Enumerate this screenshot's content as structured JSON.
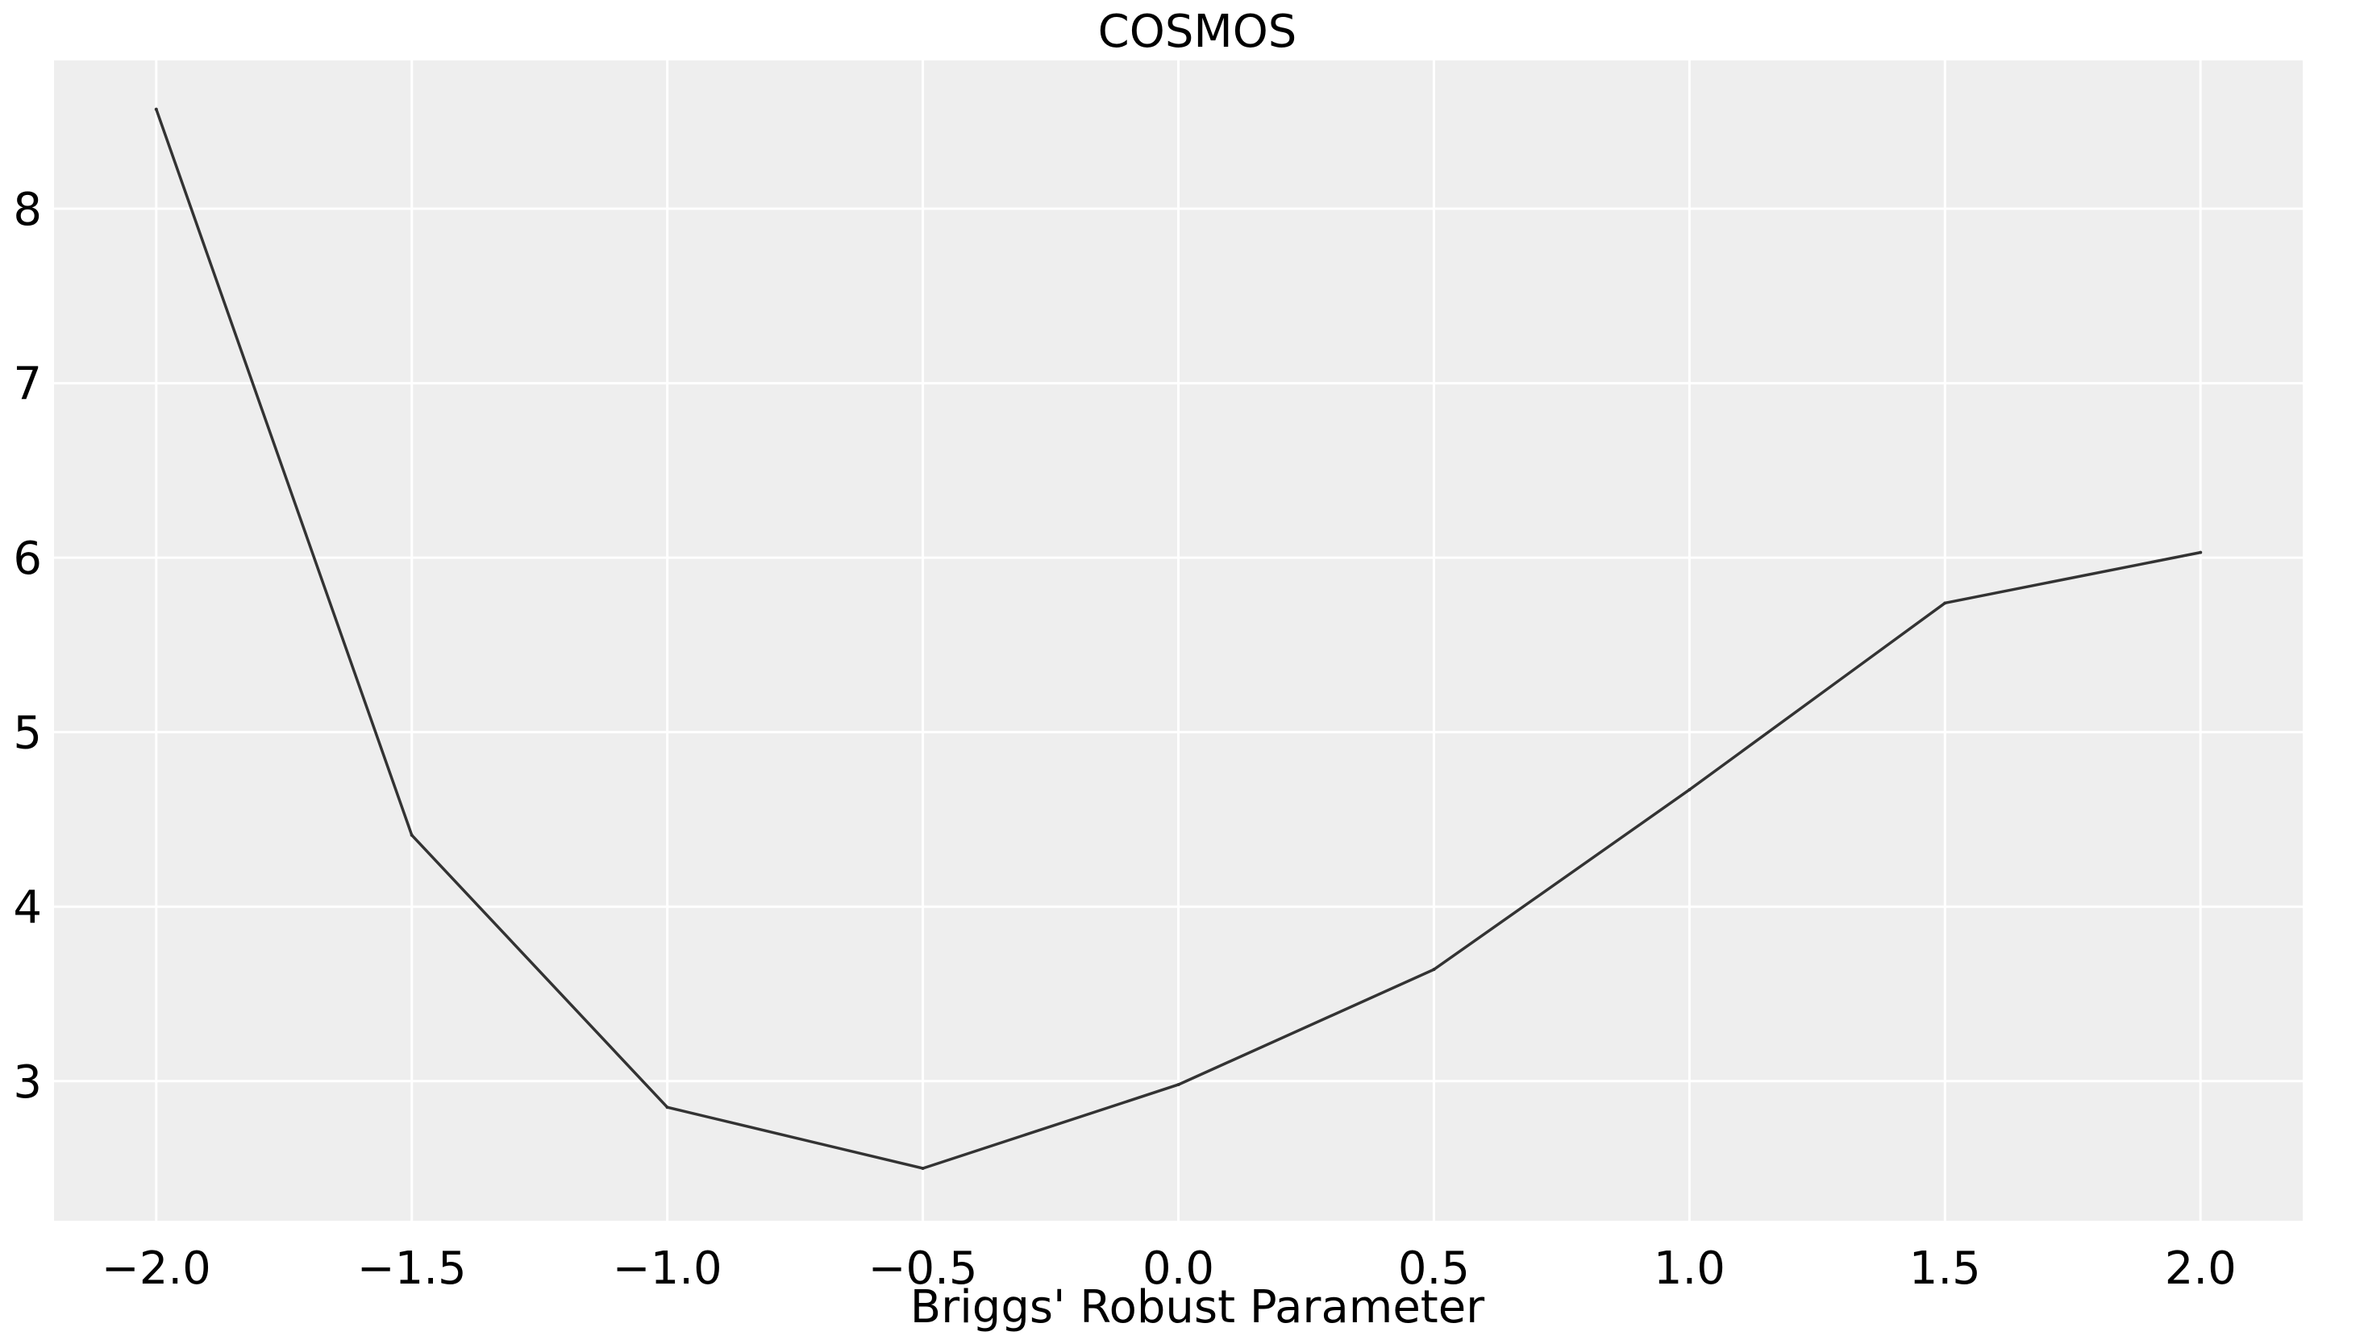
{
  "chart_data": {
    "type": "line",
    "title": "COSMOS",
    "xlabel": "Briggs' Robust Parameter",
    "ylabel": "",
    "xlim": [
      -2.2,
      2.2
    ],
    "ylim": [
      2.2,
      8.85
    ],
    "xticks": [
      -2.0,
      -1.5,
      -1.0,
      -0.5,
      0.0,
      0.5,
      1.0,
      1.5,
      2.0
    ],
    "xtick_labels": [
      "−2.0",
      "−1.5",
      "−1.0",
      "−0.5",
      "0.0",
      "0.5",
      "1.0",
      "1.5",
      "2.0"
    ],
    "yticks": [
      3,
      4,
      5,
      6,
      7,
      8
    ],
    "ytick_labels": [
      "3",
      "4",
      "5",
      "6",
      "7",
      "8"
    ],
    "grid": true,
    "legend": "none",
    "colors": {
      "plot_background": "#eeeeee",
      "grid": "#ffffff",
      "line": "#333333"
    },
    "series": [
      {
        "x": [
          -2.0,
          -1.5,
          -1.0,
          -0.5,
          0.0,
          0.5,
          1.0,
          1.5,
          2.0
        ],
        "values": [
          8.57,
          4.41,
          2.85,
          2.5,
          2.98,
          3.64,
          4.67,
          5.74,
          6.03
        ]
      }
    ]
  }
}
